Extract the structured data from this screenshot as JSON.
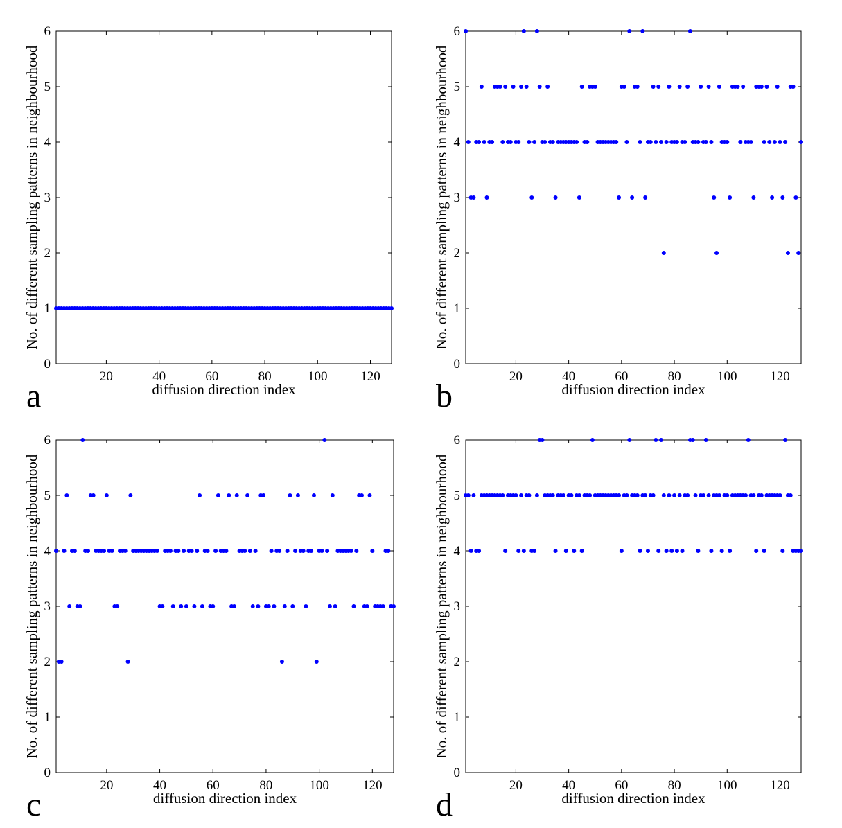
{
  "chart_data": [
    {
      "panel": "a",
      "type": "scatter",
      "xlabel": "diffusion direction index",
      "ylabel": "No. of different sampling patterns in neighbourhood",
      "xlim": [
        1,
        128
      ],
      "ylim": [
        0,
        6
      ],
      "xticks": [
        20,
        40,
        60,
        80,
        100,
        120
      ],
      "yticks": [
        0,
        1,
        2,
        3,
        4,
        5,
        6
      ],
      "marker_color": "#0000ff",
      "x": [
        1,
        2,
        3,
        4,
        5,
        6,
        7,
        8,
        9,
        10,
        11,
        12,
        13,
        14,
        15,
        16,
        17,
        18,
        19,
        20,
        21,
        22,
        23,
        24,
        25,
        26,
        27,
        28,
        29,
        30,
        31,
        32,
        33,
        34,
        35,
        36,
        37,
        38,
        39,
        40,
        41,
        42,
        43,
        44,
        45,
        46,
        47,
        48,
        49,
        50,
        51,
        52,
        53,
        54,
        55,
        56,
        57,
        58,
        59,
        60,
        61,
        62,
        63,
        64,
        65,
        66,
        67,
        68,
        69,
        70,
        71,
        72,
        73,
        74,
        75,
        76,
        77,
        78,
        79,
        80,
        81,
        82,
        83,
        84,
        85,
        86,
        87,
        88,
        89,
        90,
        91,
        92,
        93,
        94,
        95,
        96,
        97,
        98,
        99,
        100,
        101,
        102,
        103,
        104,
        105,
        106,
        107,
        108,
        109,
        110,
        111,
        112,
        113,
        114,
        115,
        116,
        117,
        118,
        119,
        120,
        121,
        122,
        123,
        124,
        125,
        126,
        127,
        128
      ],
      "y": [
        1,
        1,
        1,
        1,
        1,
        1,
        1,
        1,
        1,
        1,
        1,
        1,
        1,
        1,
        1,
        1,
        1,
        1,
        1,
        1,
        1,
        1,
        1,
        1,
        1,
        1,
        1,
        1,
        1,
        1,
        1,
        1,
        1,
        1,
        1,
        1,
        1,
        1,
        1,
        1,
        1,
        1,
        1,
        1,
        1,
        1,
        1,
        1,
        1,
        1,
        1,
        1,
        1,
        1,
        1,
        1,
        1,
        1,
        1,
        1,
        1,
        1,
        1,
        1,
        1,
        1,
        1,
        1,
        1,
        1,
        1,
        1,
        1,
        1,
        1,
        1,
        1,
        1,
        1,
        1,
        1,
        1,
        1,
        1,
        1,
        1,
        1,
        1,
        1,
        1,
        1,
        1,
        1,
        1,
        1,
        1,
        1,
        1,
        1,
        1,
        1,
        1,
        1,
        1,
        1,
        1,
        1,
        1,
        1,
        1,
        1,
        1,
        1,
        1,
        1,
        1,
        1,
        1,
        1,
        1,
        1,
        1,
        1,
        1,
        1,
        1,
        1,
        1
      ]
    },
    {
      "panel": "b",
      "type": "scatter",
      "xlabel": "diffusion direction index",
      "ylabel": "No. of different sampling patterns in neighbourhood",
      "xlim": [
        1,
        128
      ],
      "ylim": [
        0,
        6
      ],
      "xticks": [
        20,
        40,
        60,
        80,
        100,
        120
      ],
      "yticks": [
        0,
        1,
        2,
        3,
        4,
        5,
        6
      ],
      "marker_color": "#0000ff",
      "x": [
        1,
        2,
        3,
        4,
        5,
        6,
        7,
        8,
        9,
        10,
        11,
        12,
        13,
        14,
        15,
        16,
        17,
        18,
        19,
        20,
        21,
        22,
        23,
        24,
        25,
        26,
        27,
        28,
        29,
        30,
        31,
        32,
        33,
        34,
        35,
        36,
        37,
        38,
        39,
        40,
        41,
        42,
        43,
        44,
        45,
        46,
        47,
        48,
        49,
        50,
        51,
        52,
        53,
        54,
        55,
        56,
        57,
        58,
        59,
        60,
        61,
        62,
        63,
        64,
        65,
        66,
        67,
        68,
        69,
        70,
        71,
        72,
        73,
        74,
        75,
        76,
        77,
        78,
        79,
        80,
        81,
        82,
        83,
        84,
        85,
        86,
        87,
        88,
        89,
        90,
        91,
        92,
        93,
        94,
        95,
        96,
        97,
        98,
        99,
        100,
        101,
        102,
        103,
        104,
        105,
        106,
        107,
        108,
        109,
        110,
        111,
        112,
        113,
        114,
        115,
        116,
        117,
        118,
        119,
        120,
        121,
        122,
        123,
        124,
        125,
        126,
        127,
        128
      ],
      "y": [
        6,
        4,
        3,
        3,
        4,
        4,
        5,
        4,
        3,
        4,
        4,
        5,
        5,
        5,
        4,
        5,
        4,
        4,
        5,
        4,
        4,
        5,
        6,
        5,
        4,
        3,
        4,
        6,
        5,
        4,
        4,
        5,
        4,
        4,
        3,
        4,
        4,
        4,
        4,
        4,
        4,
        4,
        4,
        3,
        5,
        4,
        4,
        5,
        5,
        5,
        4,
        4,
        4,
        4,
        4,
        4,
        4,
        4,
        3,
        5,
        5,
        4,
        6,
        3,
        5,
        5,
        4,
        6,
        3,
        4,
        4,
        5,
        4,
        5,
        4,
        2,
        4,
        5,
        4,
        4,
        4,
        5,
        4,
        4,
        5,
        6,
        4,
        4,
        4,
        5,
        4,
        4,
        5,
        4,
        3,
        2,
        5,
        4,
        4,
        4,
        3,
        5,
        5,
        5,
        4,
        5,
        4,
        4,
        4,
        3,
        5,
        5,
        5,
        4,
        5,
        4,
        3,
        4,
        5,
        4,
        3,
        4,
        2,
        5,
        5,
        3,
        2,
        4
      ]
    },
    {
      "panel": "c",
      "type": "scatter",
      "xlabel": "diffusion direction index",
      "ylabel": "No. of different sampling patterns in neighbourhood",
      "xlim": [
        1,
        128
      ],
      "ylim": [
        0,
        6
      ],
      "xticks": [
        20,
        40,
        60,
        80,
        100,
        120
      ],
      "yticks": [
        0,
        1,
        2,
        3,
        4,
        5,
        6
      ],
      "marker_color": "#0000ff",
      "x": [
        1,
        2,
        3,
        4,
        5,
        6,
        7,
        8,
        9,
        10,
        11,
        12,
        13,
        14,
        15,
        16,
        17,
        18,
        19,
        20,
        21,
        22,
        23,
        24,
        25,
        26,
        27,
        28,
        29,
        30,
        31,
        32,
        33,
        34,
        35,
        36,
        37,
        38,
        39,
        40,
        41,
        42,
        43,
        44,
        45,
        46,
        47,
        48,
        49,
        50,
        51,
        52,
        53,
        54,
        55,
        56,
        57,
        58,
        59,
        60,
        61,
        62,
        63,
        64,
        65,
        66,
        67,
        68,
        69,
        70,
        71,
        72,
        73,
        74,
        75,
        76,
        77,
        78,
        79,
        80,
        81,
        82,
        83,
        84,
        85,
        86,
        87,
        88,
        89,
        90,
        91,
        92,
        93,
        94,
        95,
        96,
        97,
        98,
        99,
        100,
        101,
        102,
        103,
        104,
        105,
        106,
        107,
        108,
        109,
        110,
        111,
        112,
        113,
        114,
        115,
        116,
        117,
        118,
        119,
        120,
        121,
        122,
        123,
        124,
        125,
        126,
        127,
        128
      ],
      "y": [
        4,
        2,
        2,
        4,
        5,
        3,
        4,
        4,
        3,
        3,
        6,
        4,
        4,
        5,
        5,
        4,
        4,
        4,
        4,
        5,
        4,
        4,
        3,
        3,
        4,
        4,
        4,
        2,
        5,
        4,
        4,
        4,
        4,
        4,
        4,
        4,
        4,
        4,
        4,
        3,
        3,
        4,
        4,
        4,
        3,
        4,
        4,
        3,
        4,
        3,
        4,
        4,
        3,
        4,
        5,
        3,
        4,
        4,
        3,
        3,
        4,
        5,
        4,
        4,
        4,
        5,
        3,
        3,
        5,
        4,
        4,
        4,
        5,
        4,
        3,
        4,
        3,
        5,
        5,
        3,
        3,
        4,
        3,
        4,
        4,
        2,
        3,
        4,
        5,
        3,
        4,
        5,
        4,
        4,
        3,
        4,
        4,
        5,
        2,
        4,
        4,
        6,
        4,
        3,
        5,
        3,
        4,
        4,
        4,
        4,
        4,
        4,
        3,
        4,
        5,
        5,
        3,
        3,
        5,
        4,
        3,
        3,
        3,
        3,
        4,
        4,
        3,
        3
      ]
    },
    {
      "panel": "d",
      "type": "scatter",
      "xlabel": "diffusion direction index",
      "ylabel": "No. of different sampling patterns in neighbourhood",
      "xlim": [
        1,
        128
      ],
      "ylim": [
        0,
        6
      ],
      "xticks": [
        20,
        40,
        60,
        80,
        100,
        120
      ],
      "yticks": [
        0,
        1,
        2,
        3,
        4,
        5,
        6
      ],
      "marker_color": "#0000ff",
      "x": [
        1,
        2,
        3,
        4,
        5,
        6,
        7,
        8,
        9,
        10,
        11,
        12,
        13,
        14,
        15,
        16,
        17,
        18,
        19,
        20,
        21,
        22,
        23,
        24,
        25,
        26,
        27,
        28,
        29,
        30,
        31,
        32,
        33,
        34,
        35,
        36,
        37,
        38,
        39,
        40,
        41,
        42,
        43,
        44,
        45,
        46,
        47,
        48,
        49,
        50,
        51,
        52,
        53,
        54,
        55,
        56,
        57,
        58,
        59,
        60,
        61,
        62,
        63,
        64,
        65,
        66,
        67,
        68,
        69,
        70,
        71,
        72,
        73,
        74,
        75,
        76,
        77,
        78,
        79,
        80,
        81,
        82,
        83,
        84,
        85,
        86,
        87,
        88,
        89,
        90,
        91,
        92,
        93,
        94,
        95,
        96,
        97,
        98,
        99,
        100,
        101,
        102,
        103,
        104,
        105,
        106,
        107,
        108,
        109,
        110,
        111,
        112,
        113,
        114,
        115,
        116,
        117,
        118,
        119,
        120,
        121,
        122,
        123,
        124,
        125,
        126,
        127,
        128
      ],
      "y": [
        5,
        5,
        4,
        5,
        4,
        4,
        5,
        5,
        5,
        5,
        5,
        5,
        5,
        5,
        5,
        4,
        5,
        5,
        5,
        5,
        4,
        5,
        4,
        5,
        5,
        4,
        4,
        5,
        6,
        6,
        5,
        5,
        5,
        5,
        4,
        5,
        5,
        5,
        4,
        5,
        5,
        4,
        5,
        5,
        4,
        5,
        5,
        5,
        6,
        5,
        5,
        5,
        5,
        5,
        5,
        5,
        5,
        5,
        5,
        4,
        5,
        5,
        6,
        5,
        5,
        5,
        4,
        5,
        5,
        4,
        5,
        5,
        6,
        4,
        6,
        5,
        4,
        5,
        4,
        5,
        4,
        5,
        4,
        5,
        5,
        6,
        6,
        5,
        4,
        5,
        5,
        6,
        5,
        4,
        5,
        5,
        5,
        4,
        5,
        5,
        4,
        5,
        5,
        5,
        5,
        5,
        5,
        6,
        5,
        5,
        4,
        5,
        5,
        4,
        5,
        5,
        5,
        5,
        5,
        5,
        4,
        6,
        5,
        5,
        4,
        4,
        4,
        4
      ]
    }
  ]
}
